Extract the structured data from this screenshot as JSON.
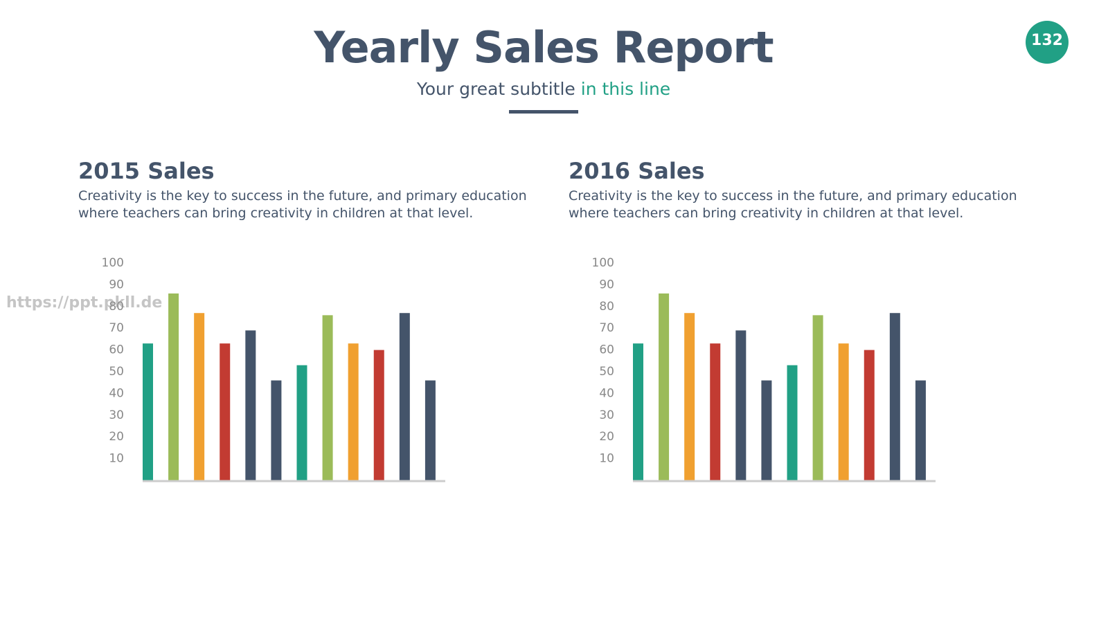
{
  "header": {
    "title": "Yearly Sales Report",
    "subtitle_start": "Your great subtitle",
    "subtitle_highlight": "in this line",
    "page_number": "132",
    "watermark": "https://ppt.pkll.de"
  },
  "chart_data": [
    {
      "type": "bar",
      "title": "2015 Sales",
      "subtitle": "Creativity is the key to success in the future, and primary education where teachers can bring creativity in children at that level.",
      "values": [
        63,
        86,
        77,
        63,
        69,
        46,
        53,
        76,
        63,
        60,
        77,
        46
      ],
      "colors": [
        "#21a085",
        "#9bbb59",
        "#f0a030",
        "#c23b32",
        "#44546a",
        "#44546a",
        "#21a085",
        "#9bbb59",
        "#f0a030",
        "#c23b32",
        "#44546a",
        "#44546a"
      ],
      "ylim": [
        0,
        100
      ],
      "yticks": [
        10,
        20,
        30,
        40,
        50,
        60,
        70,
        80,
        90,
        100
      ],
      "grid": false
    },
    {
      "type": "bar",
      "title": "2016 Sales",
      "subtitle": "Creativity is the key to success in the future, and primary education where teachers can bring creativity in children at that level.",
      "values": [
        63,
        86,
        77,
        63,
        69,
        46,
        53,
        76,
        63,
        60,
        77,
        46
      ],
      "colors": [
        "#21a085",
        "#9bbb59",
        "#f0a030",
        "#c23b32",
        "#44546a",
        "#44546a",
        "#21a085",
        "#9bbb59",
        "#f0a030",
        "#c23b32",
        "#44546a",
        "#44546a"
      ],
      "ylim": [
        0,
        100
      ],
      "yticks": [
        10,
        20,
        30,
        40,
        50,
        60,
        70,
        80,
        90,
        100
      ],
      "grid": false
    }
  ]
}
